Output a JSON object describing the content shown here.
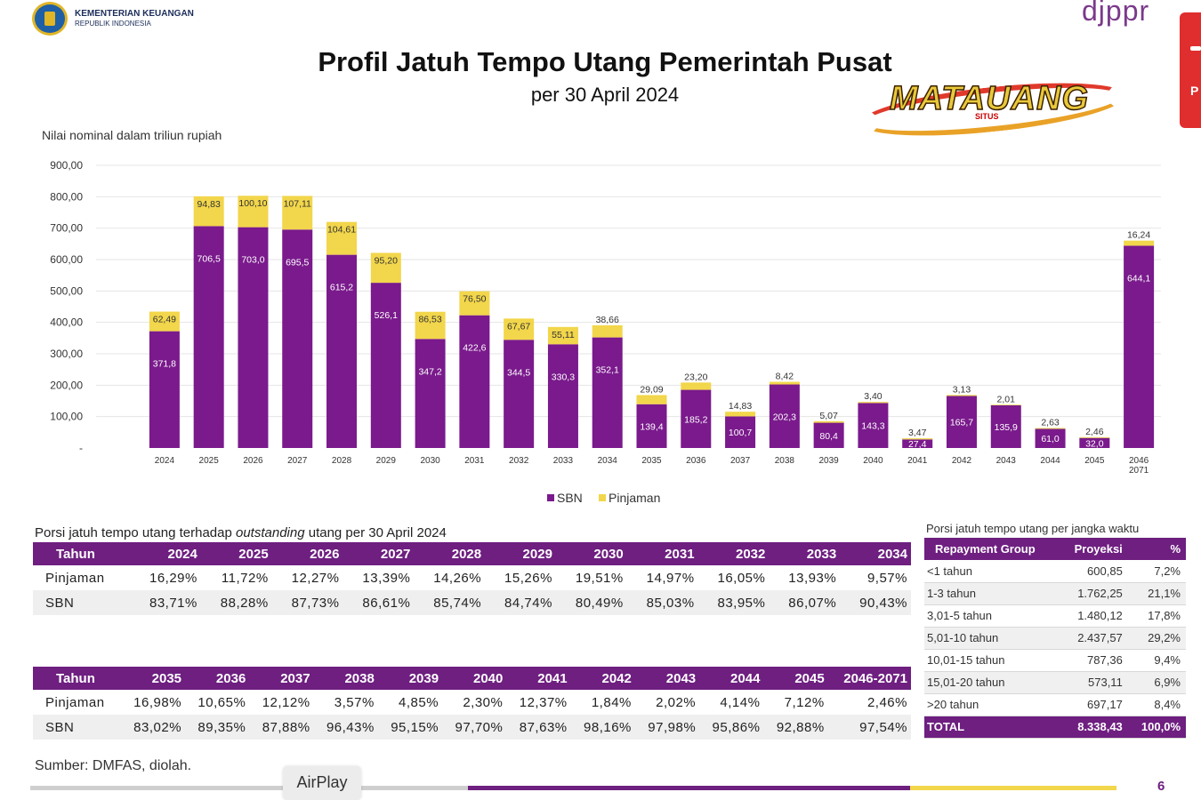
{
  "header": {
    "org_line1": "KEMENTERIAN KEUANGAN",
    "org_line2": "REPUBLIK INDONESIA",
    "brand": "djppr",
    "side_tab_letter": "P",
    "watermark": "MATAUANG",
    "watermark_small": "SITUS"
  },
  "title": "Profil Jatuh Tempo Utang Pemerintah Pusat",
  "subtitle": "per 30 April 2024",
  "chart_data": {
    "type": "bar",
    "stacked": true,
    "title": "Profil Jatuh Tempo Utang Pemerintah Pusat",
    "subtitle": "per 30 April 2024",
    "ylabel": "Nilai nominal dalam triliun rupiah",
    "xlabel": "",
    "ylim": [
      0,
      900
    ],
    "yticks": [
      "-",
      "100,00",
      "200,00",
      "300,00",
      "400,00",
      "500,00",
      "600,00",
      "700,00",
      "800,00",
      "900,00"
    ],
    "grid": true,
    "legend_position": "bottom-center",
    "categories": [
      "2024",
      "2025",
      "2026",
      "2027",
      "2028",
      "2029",
      "2030",
      "2031",
      "2032",
      "2033",
      "2034",
      "2035",
      "2036",
      "2037",
      "2038",
      "2039",
      "2040",
      "2041",
      "2042",
      "2043",
      "2044",
      "2045",
      "2046-2071"
    ],
    "category_labels": [
      [
        "2024"
      ],
      [
        "2025"
      ],
      [
        "2026"
      ],
      [
        "2027"
      ],
      [
        "2028"
      ],
      [
        "2029"
      ],
      [
        "2030"
      ],
      [
        "2031"
      ],
      [
        "2032"
      ],
      [
        "2033"
      ],
      [
        "2034"
      ],
      [
        "2035"
      ],
      [
        "2036"
      ],
      [
        "2037"
      ],
      [
        "2038"
      ],
      [
        "2039"
      ],
      [
        "2040"
      ],
      [
        "2041"
      ],
      [
        "2042"
      ],
      [
        "2043"
      ],
      [
        "2044"
      ],
      [
        "2045"
      ],
      [
        "2046",
        "2071"
      ]
    ],
    "series": [
      {
        "name": "SBN",
        "color": "#7a1a8c",
        "values": [
          371.8,
          706.5,
          703.0,
          695.5,
          615.2,
          526.1,
          347.2,
          422.6,
          344.5,
          330.3,
          352.1,
          139.4,
          185.2,
          100.7,
          202.3,
          80.4,
          143.3,
          27.4,
          165.7,
          135.9,
          61.0,
          32.0,
          644.1
        ],
        "labels": [
          "371,8",
          "706,5",
          "703,0",
          "695,5",
          "615,2",
          "526,1",
          "347,2",
          "422,6",
          "344,5",
          "330,3",
          "352,1",
          "139,4",
          "185,2",
          "100,7",
          "202,3",
          "80,4",
          "143,3",
          "27,4",
          "165,7",
          "135,9",
          "61,0",
          "32,0",
          "644,1"
        ]
      },
      {
        "name": "Pinjaman",
        "color": "#f2d64b",
        "values": [
          62.49,
          94.83,
          100.1,
          107.11,
          104.61,
          95.2,
          86.53,
          76.5,
          67.67,
          55.11,
          38.66,
          29.09,
          23.2,
          14.83,
          8.42,
          5.07,
          3.4,
          3.47,
          3.13,
          2.01,
          2.63,
          2.46,
          16.24
        ],
        "labels": [
          "62,49",
          "94,83",
          "100,10",
          "107,11",
          "104,61",
          "95,20",
          "86,53",
          "76,50",
          "67,67",
          "55,11",
          "38,66",
          "29,09",
          "23,20",
          "14,83",
          "8,42",
          "5,07",
          "3,40",
          "3,47",
          "3,13",
          "2,01",
          "2,63",
          "2,46",
          "16,24"
        ]
      }
    ]
  },
  "table1": {
    "caption_before": "Porsi jatuh tempo utang terhadap ",
    "caption_italic": "outstanding",
    "caption_after": " utang per 30 April 2024",
    "header": [
      "Tahun",
      "2024",
      "2025",
      "2026",
      "2027",
      "2028",
      "2029",
      "2030",
      "2031",
      "2032",
      "2033",
      "2034"
    ],
    "rows": [
      [
        "Pinjaman",
        "16,29%",
        "11,72%",
        "12,27%",
        "13,39%",
        "14,26%",
        "15,26%",
        "19,51%",
        "14,97%",
        "16,05%",
        "13,93%",
        "9,57%"
      ],
      [
        "SBN",
        "83,71%",
        "88,28%",
        "87,73%",
        "86,61%",
        "85,74%",
        "84,74%",
        "80,49%",
        "85,03%",
        "83,95%",
        "86,07%",
        "90,43%"
      ]
    ]
  },
  "table2": {
    "header": [
      "Tahun",
      "2035",
      "2036",
      "2037",
      "2038",
      "2039",
      "2040",
      "2041",
      "2042",
      "2043",
      "2044",
      "2045",
      "2046-2071"
    ],
    "rows": [
      [
        "Pinjaman",
        "16,98%",
        "10,65%",
        "12,12%",
        "3,57%",
        "4,85%",
        "2,30%",
        "12,37%",
        "1,84%",
        "2,02%",
        "4,14%",
        "7,12%",
        "2,46%"
      ],
      [
        "SBN",
        "83,02%",
        "89,35%",
        "87,88%",
        "96,43%",
        "95,15%",
        "97,70%",
        "87,63%",
        "98,16%",
        "97,98%",
        "95,86%",
        "92,88%",
        "97,54%"
      ]
    ]
  },
  "repayment": {
    "caption": "Porsi jatuh tempo utang per jangka waktu",
    "header": [
      "Repayment Group",
      "Proyeksi",
      "%"
    ],
    "rows": [
      [
        "<1 tahun",
        "600,85",
        "7,2%"
      ],
      [
        "1-3 tahun",
        "1.762,25",
        "21,1%"
      ],
      [
        "3,01-5 tahun",
        "1.480,12",
        "17,8%"
      ],
      [
        "5,01-10 tahun",
        "2.437,57",
        "29,2%"
      ],
      [
        "10,01-15 tahun",
        "787,36",
        "9,4%"
      ],
      [
        "15,01-20 tahun",
        "573,11",
        "6,9%"
      ],
      [
        ">20 tahun",
        "697,17",
        "8,4%"
      ]
    ],
    "total": [
      "TOTAL",
      "8.338,43",
      "100,0%"
    ]
  },
  "footer": {
    "source": "Sumber: DMFAS, diolah.",
    "airplay": "AirPlay",
    "page": "6"
  }
}
